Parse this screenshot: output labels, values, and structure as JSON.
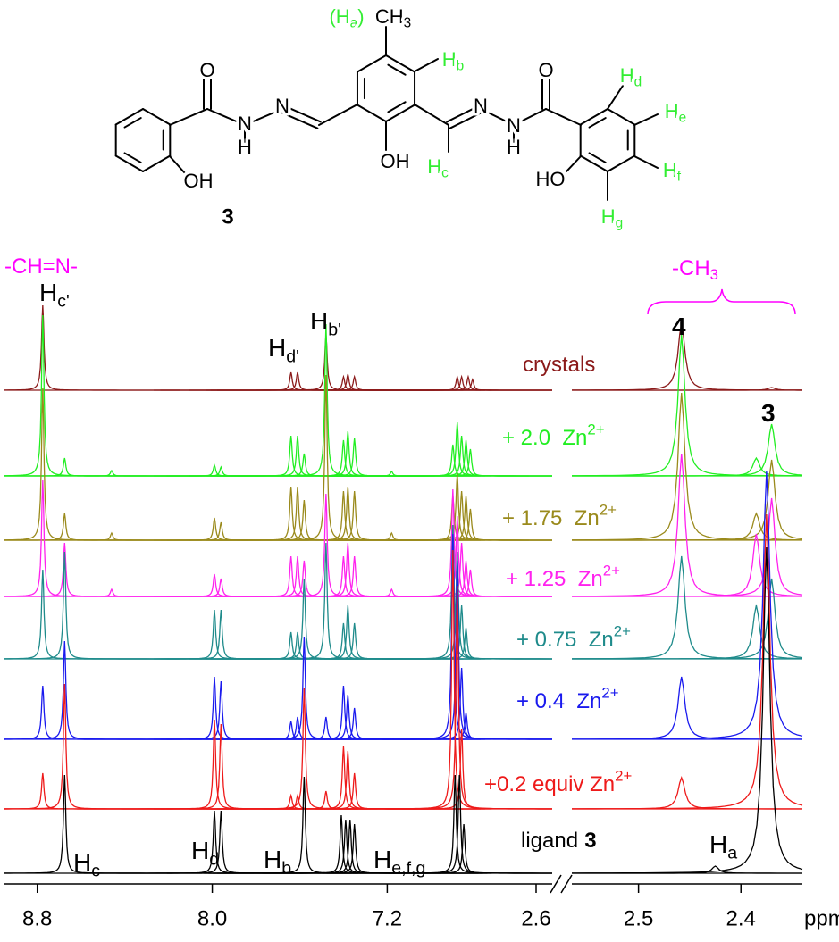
{
  "structure": {
    "compound": "3",
    "labels": [
      {
        "text": "O"
      },
      {
        "text": "N"
      },
      {
        "text": "H"
      },
      {
        "text": "N"
      },
      {
        "text": "O"
      },
      {
        "text": "N"
      },
      {
        "text": "N"
      },
      {
        "text": "H"
      },
      {
        "text": "OH"
      },
      {
        "text": "OH"
      },
      {
        "text": "HO"
      },
      {
        "text": "CH",
        "sub": "3"
      },
      {
        "text": "(H",
        "sub": "a",
        "after": ")",
        "color": "#33ee33"
      },
      {
        "text": "H",
        "sub": "b",
        "color": "#33ee33"
      },
      {
        "text": "H",
        "sub": "c",
        "color": "#33ee33"
      },
      {
        "text": "H",
        "sub": "d",
        "color": "#33ee33"
      },
      {
        "text": "H",
        "sub": "e",
        "color": "#33ee33"
      },
      {
        "text": "H",
        "sub": "f",
        "color": "#33ee33"
      },
      {
        "text": "H",
        "sub": "g",
        "color": "#33ee33"
      }
    ]
  },
  "chart_data": {
    "type": "nmr",
    "xlabel": "ppm",
    "segments": [
      {
        "xlim": [
          8.95,
          6.45
        ],
        "xticks": [
          8.8,
          {
            "value": 8,
            "label": "8.0"
          },
          7.2
        ]
      },
      {
        "xlim": [
          2.6,
          2.34
        ],
        "xticks": [
          2.6,
          2.5,
          2.4
        ]
      }
    ],
    "annotations": [
      {
        "text": "-CH=N-",
        "color": "#ff00ff"
      },
      {
        "text": "H",
        "sub": "c'"
      },
      {
        "text": "H",
        "sub": "d'"
      },
      {
        "text": "H",
        "sub": "b'"
      },
      {
        "text": "-CH",
        "sub": "3",
        "color": "#ff00ff"
      },
      {
        "bold": "4"
      },
      {
        "bold": "3"
      },
      {
        "text": "H",
        "sub": "c"
      },
      {
        "text": "H",
        "sub": "d"
      },
      {
        "text": "H",
        "sub": "b"
      },
      {
        "text": "H",
        "sub": "e,f,g"
      },
      {
        "text": "H",
        "sub": "a"
      }
    ],
    "series": [
      {
        "name": "crystals",
        "color": "#8b1a1a",
        "x": [
          8.775,
          7.64,
          7.61,
          7.48,
          7.4,
          7.38,
          7.35,
          6.88,
          6.86,
          6.83,
          6.81,
          2.458,
          2.37
        ],
        "values": [
          95,
          20,
          20,
          62,
          15,
          18,
          15,
          15,
          15,
          15,
          12,
          75,
          3
        ]
      },
      {
        "name": "+ 2.0  Zn",
        "sup": "2+",
        "color": "#22ee22",
        "x": [
          8.775,
          8.675,
          8.46,
          7.99,
          7.96,
          7.64,
          7.61,
          7.58,
          7.48,
          7.4,
          7.38,
          7.35,
          7.18,
          6.9,
          6.88,
          6.86,
          6.84,
          6.82,
          2.458,
          2.385,
          2.37
        ],
        "values": [
          180,
          20,
          6,
          12,
          10,
          45,
          45,
          25,
          170,
          40,
          50,
          42,
          5,
          35,
          60,
          45,
          40,
          30,
          158,
          20,
          58
        ]
      },
      {
        "name": "+ 1.75  Zn",
        "sup": "2+",
        "color": "#9a8a1c",
        "x": [
          8.775,
          8.675,
          8.46,
          7.99,
          7.96,
          7.64,
          7.61,
          7.58,
          7.48,
          7.4,
          7.38,
          7.35,
          7.18,
          6.9,
          6.88,
          6.86,
          6.84,
          6.82,
          2.458,
          2.385,
          2.37
        ],
        "values": [
          170,
          30,
          8,
          25,
          20,
          60,
          60,
          45,
          185,
          55,
          60,
          55,
          8,
          50,
          75,
          55,
          50,
          35,
          165,
          30,
          90
        ]
      },
      {
        "name": "+ 1.25  Zn",
        "sup": "2+",
        "color": "#ff22ee",
        "x": [
          8.775,
          8.675,
          8.46,
          7.99,
          7.96,
          7.64,
          7.61,
          7.58,
          7.48,
          7.4,
          7.38,
          7.35,
          7.18,
          6.9,
          6.88,
          6.86,
          6.84,
          6.82,
          2.458,
          2.385,
          2.37
        ],
        "values": [
          130,
          60,
          8,
          25,
          20,
          45,
          45,
          40,
          115,
          45,
          60,
          45,
          8,
          120,
          90,
          60,
          40,
          30,
          160,
          70,
          110
        ]
      },
      {
        "name": "+ 0.75  Zn",
        "sup": "2+",
        "color": "#1f8b8b",
        "x": [
          8.775,
          8.675,
          7.99,
          7.96,
          7.64,
          7.61,
          7.58,
          7.48,
          7.4,
          7.38,
          7.35,
          6.9,
          6.88,
          6.86,
          6.84,
          2.458,
          2.385,
          2.37
        ],
        "values": [
          100,
          120,
          55,
          55,
          30,
          30,
          90,
          130,
          40,
          60,
          40,
          150,
          120,
          60,
          35,
          115,
          60,
          90
        ]
      },
      {
        "name": "+ 0.4  Zn",
        "sup": "2+",
        "color": "#1a1aee",
        "x": [
          8.775,
          8.675,
          7.99,
          7.96,
          7.64,
          7.61,
          7.58,
          7.48,
          7.4,
          7.38,
          7.35,
          6.9,
          6.88,
          6.86,
          6.84,
          2.458,
          2.375
        ],
        "values": [
          60,
          110,
          70,
          65,
          20,
          25,
          115,
          25,
          60,
          50,
          35,
          230,
          200,
          80,
          30,
          70,
          300
        ]
      },
      {
        "name": "+0.2 equiv Zn",
        "sup": "2+",
        "color": "#ee1a1a",
        "x": [
          8.775,
          8.675,
          7.99,
          7.96,
          7.64,
          7.61,
          7.58,
          7.48,
          7.4,
          7.38,
          7.35,
          6.9,
          6.88,
          6.86,
          2.458,
          2.375
        ],
        "values": [
          40,
          140,
          100,
          95,
          15,
          15,
          135,
          20,
          70,
          65,
          40,
          290,
          250,
          90,
          35,
          330
        ]
      },
      {
        "name": "ligand",
        "bold": "3",
        "color": "#000000",
        "x": [
          8.675,
          7.99,
          7.96,
          7.58,
          7.41,
          7.39,
          7.37,
          7.35,
          6.89,
          6.87,
          6.85,
          2.425,
          2.375
        ],
        "values": [
          110,
          70,
          70,
          108,
          65,
          60,
          60,
          55,
          110,
          110,
          55,
          8,
          365
        ]
      }
    ]
  }
}
